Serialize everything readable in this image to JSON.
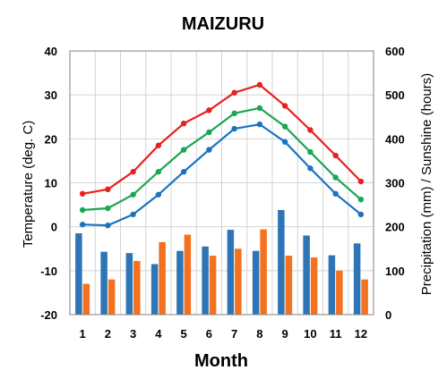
{
  "chart_data": {
    "type": "bar+line",
    "title": "MAIZURU",
    "xlabel": "Month",
    "ylabel_left": "Temperature (deg. C)",
    "ylabel_right": "Precipitation (mm) / Sunshine (hours)",
    "categories": [
      "1",
      "2",
      "3",
      "4",
      "5",
      "6",
      "7",
      "8",
      "9",
      "10",
      "11",
      "12"
    ],
    "ylim_left": [
      -20,
      40
    ],
    "ylim_right": [
      0,
      600
    ],
    "yticks_left": [
      "40",
      "30",
      "20",
      "10",
      "0",
      "-10",
      "-20"
    ],
    "yticks_right": [
      "600",
      "500",
      "400",
      "300",
      "200",
      "100",
      "0"
    ],
    "grid": true,
    "line_series": [
      {
        "color": "#e8201e",
        "values": [
          7.5,
          8.5,
          12.5,
          18.5,
          23.5,
          26.5,
          30.5,
          32.3,
          27.5,
          22.0,
          16.2,
          10.3
        ]
      },
      {
        "color": "#1aa653",
        "values": [
          3.8,
          4.2,
          7.3,
          12.5,
          17.5,
          21.5,
          25.8,
          27.0,
          22.8,
          17.0,
          11.2,
          6.2
        ]
      },
      {
        "color": "#1b73c0",
        "values": [
          0.5,
          0.3,
          2.8,
          7.3,
          12.5,
          17.5,
          22.3,
          23.3,
          19.3,
          13.3,
          7.5,
          2.8
        ]
      }
    ],
    "bar_series": [
      {
        "color": "#2e75b6",
        "values": [
          185,
          143,
          140,
          115,
          145,
          155,
          193,
          145,
          238,
          180,
          135,
          162
        ]
      },
      {
        "color": "#f4711f",
        "values": [
          70,
          80,
          122,
          165,
          182,
          134,
          150,
          194,
          134,
          130,
          100,
          80
        ]
      }
    ]
  }
}
